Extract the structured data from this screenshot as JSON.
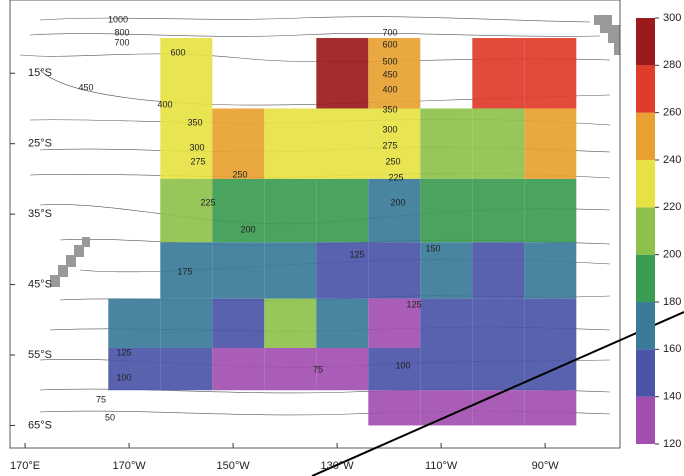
{
  "chart_data": {
    "type": "gridmap",
    "xlim": [
      167.1,
      284.4
    ],
    "ylim": [
      -68.2,
      -4.6
    ],
    "xticks": [
      {
        "value": 170,
        "label": "170°E"
      },
      {
        "value": 190,
        "label": "170°W"
      },
      {
        "value": 210,
        "label": "150°W"
      },
      {
        "value": 230,
        "label": "130°W"
      },
      {
        "value": 250,
        "label": "110°W"
      },
      {
        "value": 270,
        "label": "90°W"
      }
    ],
    "yticks": [
      {
        "value": -15,
        "label": "15°S"
      },
      {
        "value": -25,
        "label": "25°S"
      },
      {
        "value": -35,
        "label": "35°S"
      },
      {
        "value": -45,
        "label": "45°S"
      },
      {
        "value": -55,
        "label": "55°S"
      },
      {
        "value": -65,
        "label": "65°S"
      }
    ],
    "lon_edges": [
      186,
      196,
      206,
      216,
      226,
      236,
      246,
      256,
      266,
      276
    ],
    "lat_edges": [
      -10,
      -20,
      -30,
      -39,
      -47,
      -54,
      -60,
      -65
    ],
    "grid_values": [
      [
        null,
        230,
        null,
        null,
        290,
        250,
        null,
        270,
        270
      ],
      [
        null,
        230,
        250,
        230,
        230,
        230,
        210,
        210,
        250
      ],
      [
        null,
        210,
        190,
        190,
        190,
        170,
        190,
        190,
        190
      ],
      [
        null,
        170,
        170,
        170,
        150,
        150,
        170,
        150,
        170
      ],
      [
        170,
        170,
        150,
        210,
        170,
        130,
        150,
        150,
        150
      ],
      [
        150,
        150,
        130,
        130,
        130,
        150,
        150,
        150,
        150
      ],
      [
        null,
        null,
        null,
        null,
        null,
        130,
        130,
        130,
        130
      ]
    ],
    "colorbar": {
      "ticks": [
        120,
        140,
        160,
        180,
        200,
        220,
        240,
        260,
        280,
        300
      ],
      "colors": [
        "#a24fb0",
        "#4b55a8",
        "#3a7b99",
        "#3c9b52",
        "#8ec14c",
        "#e6e243",
        "#e8a131",
        "#e03b2b",
        "#9b1b1c"
      ]
    },
    "contour_labels": [
      1000,
      800,
      700,
      600,
      450,
      400,
      350,
      300,
      275,
      250,
      225,
      200,
      175,
      700,
      600,
      500,
      450,
      400,
      350,
      300,
      275,
      250,
      225,
      200,
      125,
      150,
      125,
      125,
      100,
      75,
      100,
      75,
      50
    ]
  }
}
